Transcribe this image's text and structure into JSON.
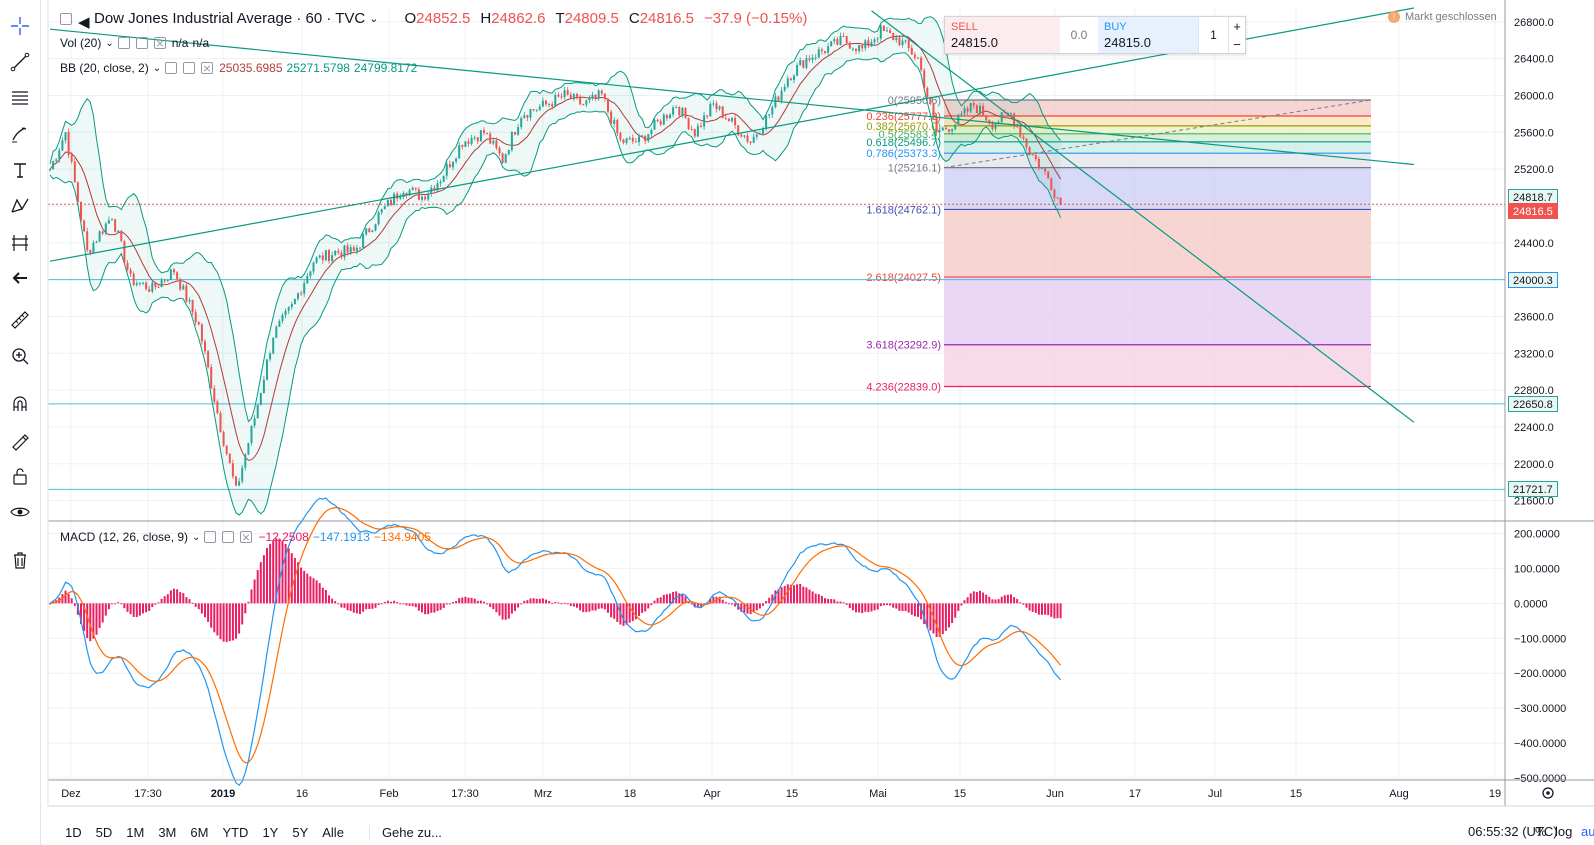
{
  "header": {
    "title": "Dow Jones Industrial Average · 60 · TVC",
    "open_label": "O",
    "open": "24852.5",
    "high_label": "H",
    "high": "24862.6",
    "low_label": "T",
    "low": "24809.5",
    "close_label": "C",
    "close": "24816.5",
    "change": "−37.9 (−0.15%)"
  },
  "vol_legend": {
    "label": "Vol (20)",
    "v1": "n/a",
    "v2": "n/a"
  },
  "bb_legend": {
    "label": "BB (20, close, 2)",
    "basis": "25035.6985",
    "upper": "25271.5798",
    "lower": "24799.8172"
  },
  "macd_legend": {
    "label": "MACD (12, 26, close, 9)",
    "hist": "−12.2508",
    "macd": "−147.1913",
    "signal": "−134.9405"
  },
  "trade": {
    "sell_label": "SELL",
    "sell_price": "24815.0",
    "spread": "0.0",
    "buy_label": "BUY",
    "buy_price": "24815.0",
    "qty": "1",
    "plus": "+",
    "minus": "−"
  },
  "market_status": "Markt geschlossen",
  "price_axis": [
    "26800.0",
    "26400.0",
    "26000.0",
    "25600.0",
    "25200.0",
    "24800.0",
    "24400.0",
    "24000.0",
    "23600.0",
    "23200.0",
    "22800.0",
    "22400.0",
    "22000.0",
    "21600.0"
  ],
  "macd_axis": [
    "200.0000",
    "100.0000",
    "0.0000",
    "−100.0000",
    "−200.0000",
    "−300.0000",
    "−400.0000",
    "−500.0000"
  ],
  "price_tags": [
    {
      "value": "24818.7",
      "color": "#26a69a",
      "text_color": "#131722"
    },
    {
      "value": "24816.5",
      "color": "#ef5350",
      "text_color": "#ffffff"
    },
    {
      "value": "24000.3",
      "color": "#2196f3",
      "text_color": "#131722"
    },
    {
      "value": "22650.8",
      "color": "#26a69a",
      "text_color": "#131722"
    },
    {
      "value": "21721.7",
      "color": "#26a69a",
      "text_color": "#131722"
    }
  ],
  "time_axis": [
    "Dez",
    "17:30",
    "2019",
    "16",
    "Feb",
    "17:30",
    "Mrz",
    "18",
    "Apr",
    "15",
    "Mai",
    "15",
    "Jun",
    "17",
    "Jul",
    "15",
    "Aug",
    "19"
  ],
  "fib_levels": [
    {
      "label": "0(25950.6)",
      "color": "#787b86",
      "fill": "#f4c7c3"
    },
    {
      "label": "0.236(25777.3)",
      "color": "#f44336",
      "fill": "#fbe3b5"
    },
    {
      "label": "0.382(25670.0)",
      "color": "#9c9c00",
      "fill": "#e6f2c0"
    },
    {
      "label": "0.5(25583.4)",
      "color": "#4caf50",
      "fill": "#cdebd0"
    },
    {
      "label": "0.618(25496.7)",
      "color": "#089981",
      "fill": "#c8ebe4"
    },
    {
      "label": "0.786(25373.3)",
      "color": "#2196f3",
      "fill": "#e1e3ea"
    },
    {
      "label": "1(25216.1)",
      "color": "#787b86",
      "fill": "#c9ccf3"
    },
    {
      "label": "1.618(24762.1)",
      "color": "#3f51b5",
      "fill": "#f4c7c3"
    },
    {
      "label": "2.618(24027.5)",
      "color": "#f44336",
      "fill": "#e3c9f2"
    },
    {
      "label": "3.618(23292.9)",
      "color": "#9c27b0",
      "fill": "#f4cfe0"
    },
    {
      "label": "4.236(22839.0)",
      "color": "#e91e63",
      "fill": ""
    }
  ],
  "range_buttons": [
    "1D",
    "5D",
    "1M",
    "3M",
    "6M",
    "YTD",
    "1Y",
    "5Y",
    "Alle"
  ],
  "goto": "Gehe zu...",
  "clock": "06:55:32 (UTC)",
  "percent_btn": "%",
  "log_btn": "log",
  "auto_btn": "auto",
  "colors": {
    "up": "#26a69a",
    "down": "#ef5350",
    "bb": "#089981",
    "bb_basis": "#b23b3b",
    "macd": "#2196f3",
    "signal": "#ff6d00",
    "hist": "#e91e63",
    "trend": "#089981",
    "hline": "#4dbce0"
  },
  "chart_data": {
    "type": "candlestick",
    "price_range": [
      21400,
      26950
    ],
    "macd_range": [
      -500,
      230
    ],
    "close_path": [
      [
        0,
        25200
      ],
      [
        5,
        25600
      ],
      [
        12,
        24300
      ],
      [
        20,
        24700
      ],
      [
        26,
        24000
      ],
      [
        33,
        23900
      ],
      [
        40,
        24100
      ],
      [
        48,
        23500
      ],
      [
        55,
        22400
      ],
      [
        60,
        21700
      ],
      [
        66,
        22500
      ],
      [
        72,
        23400
      ],
      [
        78,
        23700
      ],
      [
        85,
        24200
      ],
      [
        92,
        24300
      ],
      [
        98,
        24300
      ],
      [
        106,
        24700
      ],
      [
        114,
        25000
      ],
      [
        120,
        24900
      ],
      [
        126,
        25100
      ],
      [
        133,
        25500
      ],
      [
        140,
        25600
      ],
      [
        146,
        25300
      ],
      [
        152,
        25800
      ],
      [
        160,
        25900
      ],
      [
        166,
        26000
      ],
      [
        172,
        25900
      ],
      [
        178,
        26000
      ],
      [
        184,
        25500
      ],
      [
        190,
        25500
      ],
      [
        196,
        25700
      ],
      [
        202,
        25900
      ],
      [
        208,
        25600
      ],
      [
        214,
        25900
      ],
      [
        220,
        25700
      ],
      [
        226,
        25500
      ],
      [
        232,
        25800
      ],
      [
        238,
        26200
      ],
      [
        244,
        26400
      ],
      [
        250,
        26500
      ],
      [
        256,
        26600
      ],
      [
        262,
        26500
      ],
      [
        268,
        26700
      ],
      [
        274,
        26600
      ],
      [
        280,
        26400
      ],
      [
        286,
        25600
      ],
      [
        292,
        25700
      ],
      [
        298,
        25900
      ],
      [
        304,
        25700
      ],
      [
        310,
        25800
      ],
      [
        316,
        25400
      ],
      [
        322,
        25100
      ],
      [
        326,
        24820
      ]
    ],
    "fib_values": [
      25950.6,
      25777.3,
      25670.0,
      25583.4,
      25496.7,
      25373.3,
      25216.1,
      24762.1,
      24027.5,
      23292.9,
      22839.0
    ],
    "horizontal_lines": [
      24000.3,
      22650.8,
      21721.7,
      24818.7
    ],
    "trend_lines": [
      {
        "from": [
          0,
          24200
        ],
        "to": [
          440,
          26950
        ]
      },
      {
        "from": [
          0,
          26720
        ],
        "to": [
          440,
          25250
        ]
      },
      {
        "from": [
          265,
          26920
        ],
        "to": [
          440,
          22450
        ]
      }
    ]
  }
}
